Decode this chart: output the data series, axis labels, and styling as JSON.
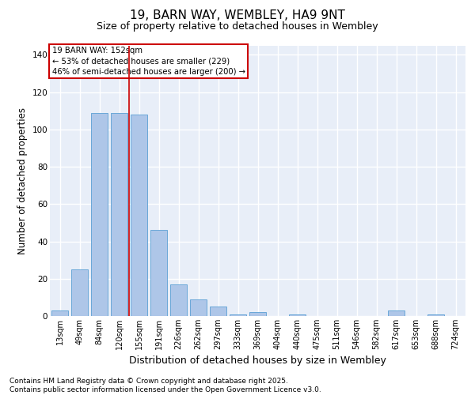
{
  "title": "19, BARN WAY, WEMBLEY, HA9 9NT",
  "subtitle": "Size of property relative to detached houses in Wembley",
  "xlabel": "Distribution of detached houses by size in Wembley",
  "ylabel": "Number of detached properties",
  "categories": [
    "13sqm",
    "49sqm",
    "84sqm",
    "120sqm",
    "155sqm",
    "191sqm",
    "226sqm",
    "262sqm",
    "297sqm",
    "333sqm",
    "369sqm",
    "404sqm",
    "440sqm",
    "475sqm",
    "511sqm",
    "546sqm",
    "582sqm",
    "617sqm",
    "653sqm",
    "688sqm",
    "724sqm"
  ],
  "values": [
    3,
    25,
    109,
    109,
    108,
    46,
    17,
    9,
    5,
    1,
    2,
    0,
    1,
    0,
    0,
    0,
    0,
    3,
    0,
    1,
    0
  ],
  "bar_color": "#aec6e8",
  "bar_edge_color": "#5a9fd4",
  "vline_x_index": 4,
  "vline_color": "#cc0000",
  "annotation_box_text": "19 BARN WAY: 152sqm\n← 53% of detached houses are smaller (229)\n46% of semi-detached houses are larger (200) →",
  "annotation_box_color": "#cc0000",
  "ylim": [
    0,
    145
  ],
  "yticks": [
    0,
    20,
    40,
    60,
    80,
    100,
    120,
    140
  ],
  "footer_line1": "Contains HM Land Registry data © Crown copyright and database right 2025.",
  "footer_line2": "Contains public sector information licensed under the Open Government Licence v3.0.",
  "background_color": "#e8eef8",
  "grid_color": "#ffffff",
  "title_fontsize": 11,
  "subtitle_fontsize": 9,
  "tick_fontsize": 7,
  "ylabel_fontsize": 8.5,
  "xlabel_fontsize": 9,
  "footer_fontsize": 6.5
}
